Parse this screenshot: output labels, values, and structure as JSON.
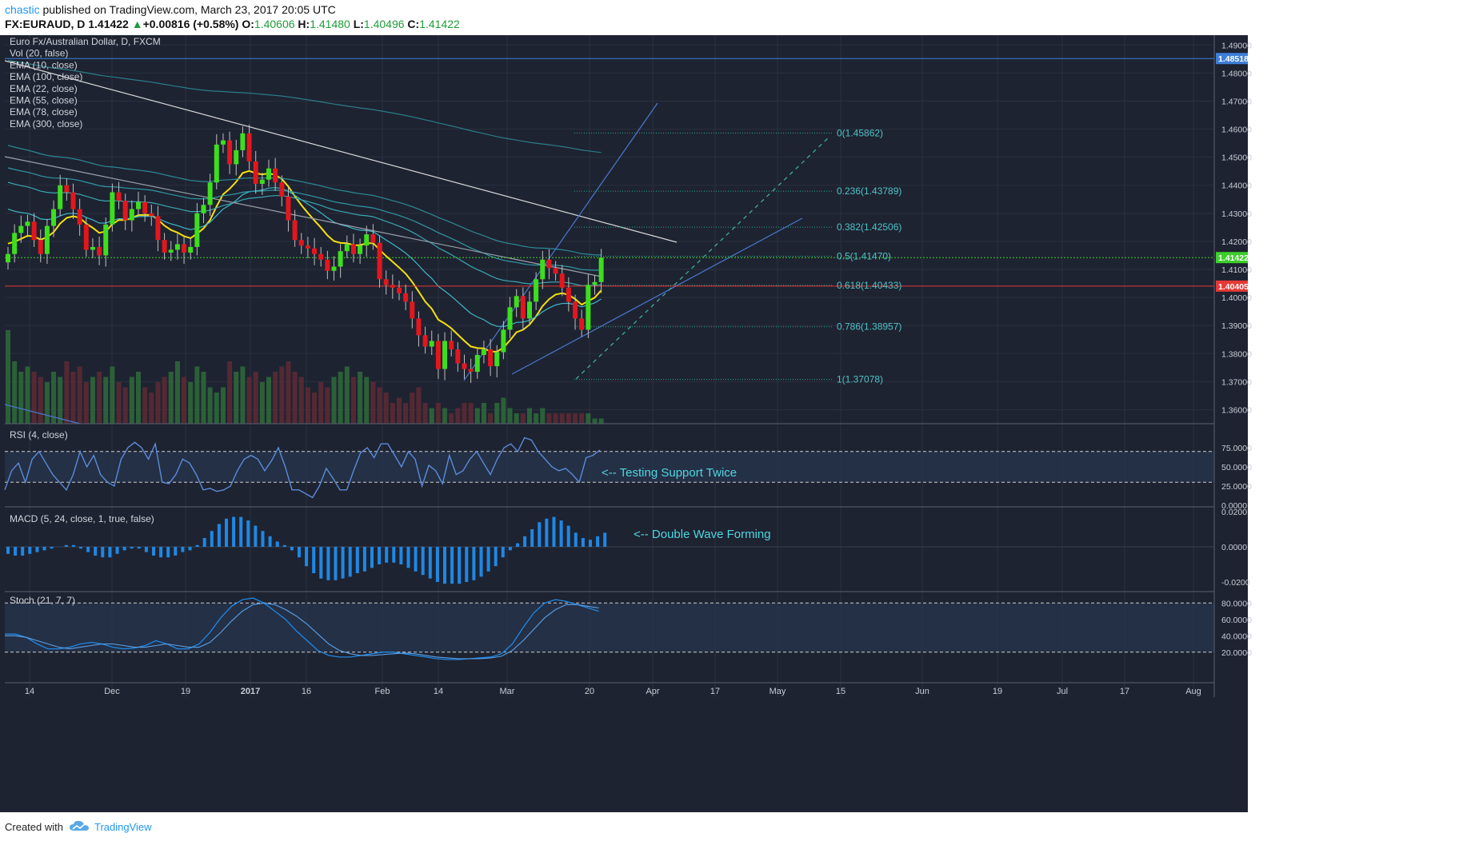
{
  "header": {
    "user": "chastic",
    "published": "published on TradingView.com, March 23, 2017 20:05 UTC",
    "symbol": "FX:EURAUD, D",
    "last": "1.41422",
    "change": "+0.00816 (+0.58%)",
    "open_label": "O:",
    "open": "1.40606",
    "high_label": "H:",
    "high": "1.41480",
    "low_label": "L:",
    "low": "1.40496",
    "close_label": "C:",
    "close": "1.41422"
  },
  "legend": [
    "Euro Fx/Australian Dollar, D, FXCM",
    "Vol (20, false)",
    "EMA (10, close)",
    "EMA (100, close)",
    "EMA (22, close)",
    "EMA (55, close)",
    "EMA (78, close)",
    "EMA (300, close)"
  ],
  "price_axis": {
    "ticks": [
      "1.49000",
      "1.48000",
      "1.47000",
      "1.46000",
      "1.45000",
      "1.44000",
      "1.43000",
      "1.42000",
      "1.41000",
      "1.40000",
      "1.39000",
      "1.38000",
      "1.37000",
      "1.36000"
    ],
    "badges": [
      {
        "label": "1.48518",
        "value": 1.48518,
        "color": "#3d7fd8"
      },
      {
        "label": "1.41422",
        "value": 1.41422,
        "color": "#3ccf2a"
      },
      {
        "label": "1.40405",
        "value": 1.40405,
        "color": "#e53935"
      }
    ]
  },
  "time_axis": {
    "labels": [
      "14",
      "Dec",
      "19",
      "2017",
      "16",
      "Feb",
      "14",
      "Mar",
      "20",
      "Apr",
      "17",
      "May",
      "15",
      "Jun",
      "19",
      "Jul",
      "17",
      "Aug"
    ]
  },
  "chart_data": {
    "type": "candlestick",
    "title": "Euro Fx/Australian Dollar, D, FXCM",
    "ylim": [
      1.355,
      1.4935
    ],
    "fib_levels": [
      {
        "label": "0(1.45862)",
        "value": 1.45862
      },
      {
        "label": "0.236(1.43789)",
        "value": 1.43789
      },
      {
        "label": "0.382(1.42506)",
        "value": 1.42506
      },
      {
        "label": "0.5(1.41470)",
        "value": 1.4147
      },
      {
        "label": "0.618(1.40433)",
        "value": 1.40433
      },
      {
        "label": "0.786(1.38957)",
        "value": 1.38957
      },
      {
        "label": "1(1.37078)",
        "value": 1.37078
      }
    ],
    "horizontal_lines": [
      {
        "value": 1.48518,
        "color": "#3d7fd8"
      },
      {
        "value": 1.41422,
        "color": "#3ccf2a"
      },
      {
        "value": 1.40405,
        "color": "#e53935"
      }
    ],
    "candles_close": [
      1.4155,
      1.423,
      1.4255,
      1.427,
      1.4205,
      1.4155,
      1.4255,
      1.4315,
      1.44,
      1.4375,
      1.4315,
      1.426,
      1.417,
      1.418,
      1.415,
      1.426,
      1.4375,
      1.4345,
      1.4275,
      1.4315,
      1.434,
      1.43,
      1.429,
      1.4205,
      1.416,
      1.417,
      1.419,
      1.416,
      1.418,
      1.43,
      1.433,
      1.441,
      1.4545,
      1.456,
      1.4475,
      1.4525,
      1.4585,
      1.4485,
      1.4405,
      1.442,
      1.446,
      1.441,
      1.436,
      1.4275,
      1.4205,
      1.4185,
      1.4175,
      1.4155,
      1.4135,
      1.4095,
      1.411,
      1.4165,
      1.419,
      1.4155,
      1.4185,
      1.4225,
      1.4195,
      1.4065,
      1.4045,
      1.4035,
      1.4015,
      1.3985,
      1.3925,
      1.3865,
      1.3825,
      1.3845,
      1.3745,
      1.3845,
      1.3815,
      1.3765,
      1.3745,
      1.3735,
      1.3795,
      1.3815,
      1.3755,
      1.3805,
      1.3885,
      1.3965,
      1.4005,
      1.3925,
      1.3985,
      1.4065,
      1.4135,
      1.4105,
      1.4085,
      1.4035,
      1.3985,
      1.3925,
      1.3885,
      1.4045,
      1.4055,
      1.4142
    ],
    "volume": [
      0.9,
      0.6,
      0.5,
      0.55,
      0.5,
      0.45,
      0.4,
      0.5,
      0.45,
      0.6,
      0.5,
      0.55,
      0.4,
      0.45,
      0.5,
      0.45,
      0.55,
      0.4,
      0.35,
      0.45,
      0.5,
      0.35,
      0.3,
      0.4,
      0.45,
      0.5,
      0.6,
      0.45,
      0.4,
      0.55,
      0.5,
      0.35,
      0.3,
      0.35,
      0.6,
      0.5,
      0.55,
      0.45,
      0.5,
      0.4,
      0.45,
      0.5,
      0.55,
      0.6,
      0.5,
      0.45,
      0.35,
      0.3,
      0.4,
      0.35,
      0.45,
      0.5,
      0.55,
      0.45,
      0.5,
      0.45,
      0.4,
      0.35,
      0.3,
      0.2,
      0.25,
      0.2,
      0.3,
      0.35,
      0.2,
      0.15,
      0.2,
      0.15,
      0.1,
      0.15,
      0.2,
      0.2,
      0.15,
      0.2,
      0.1,
      0.2,
      0.25,
      0.15,
      0.1,
      0.1,
      0.15,
      0.1,
      0.15,
      0.1,
      0.1,
      0.1,
      0.1,
      0.1,
      0.1,
      0.1,
      0.05,
      0.05
    ],
    "rsi": {
      "label": "RSI (4, close)",
      "ticks": [
        "75.0000",
        "50.0000",
        "25.0000",
        "0.0000"
      ],
      "levels": [
        70,
        30
      ],
      "annotation": "<-- Testing Support Twice"
    },
    "macd": {
      "label": "MACD (5, 24, close, 1, true, false)",
      "ticks": [
        "0.0200",
        "0.0000",
        "-0.0200"
      ],
      "annotation": "<-- Double Wave Forming"
    },
    "stoch": {
      "label": "Stoch (21, 7, 7)",
      "ticks": [
        "80.0000",
        "60.0000",
        "40.0000",
        "20.0000"
      ],
      "levels": [
        80,
        20
      ]
    }
  },
  "footer": {
    "created": "Created with",
    "brand": "TradingView"
  }
}
